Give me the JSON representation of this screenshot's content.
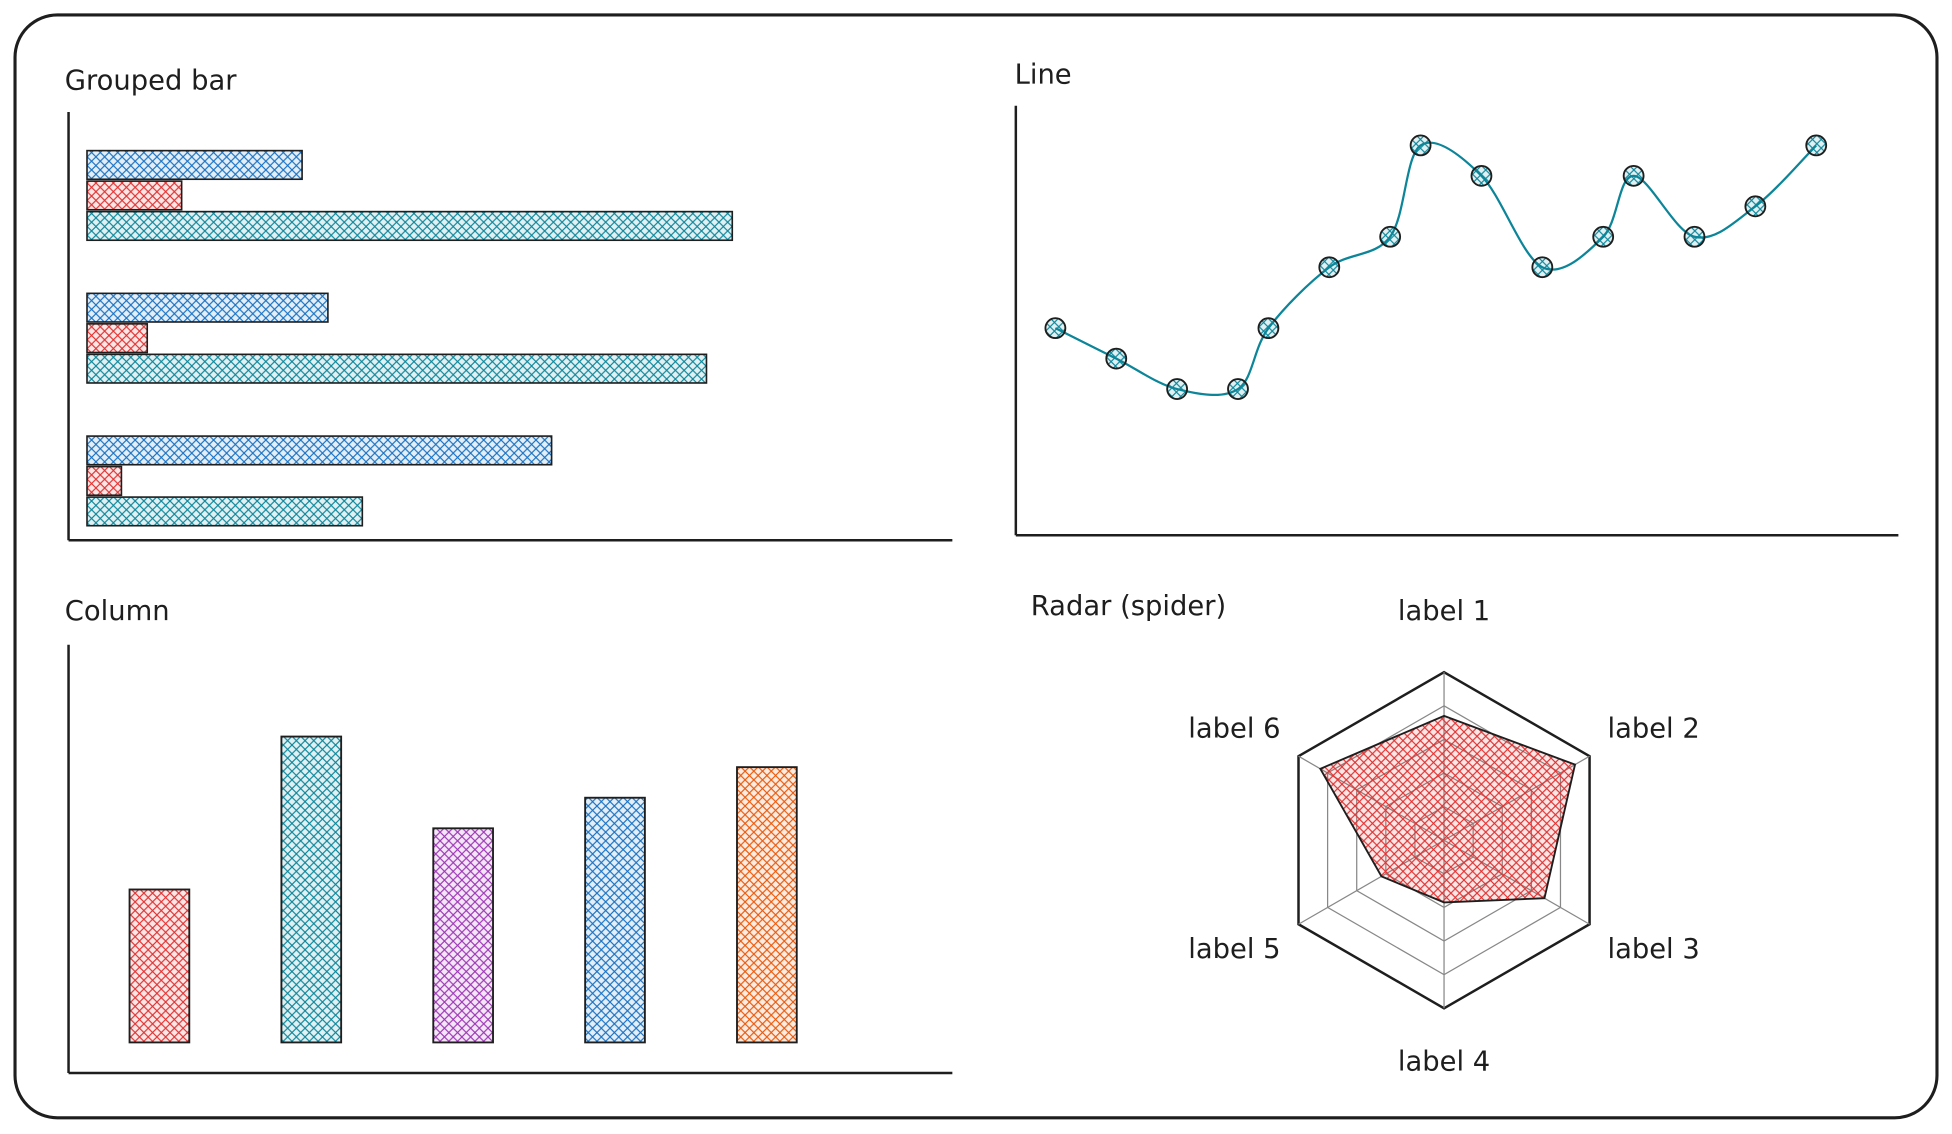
{
  "chart_data": [
    {
      "type": "bar",
      "orientation": "horizontal",
      "title": "Grouped bar",
      "categories": [
        null,
        null,
        null
      ],
      "series": [
        {
          "color": "#1971c2",
          "values": [
            25,
            28,
            54
          ]
        },
        {
          "color": "#e03131",
          "values": [
            11,
            7,
            4
          ]
        },
        {
          "color": "#0c8599",
          "values": [
            75,
            72,
            32
          ]
        }
      ],
      "xlim": [
        -2,
        100
      ]
    },
    {
      "type": "line",
      "title": "Line",
      "x": [
        0,
        2,
        4,
        6,
        7,
        9,
        11,
        12,
        14,
        16,
        18,
        19,
        21,
        23,
        25
      ],
      "series": [
        {
          "color": "#0c8599",
          "values": [
            2,
            1,
            0,
            0,
            2,
            4,
            5,
            8,
            7,
            4,
            5,
            7,
            5,
            6,
            8
          ]
        }
      ],
      "xlim": [
        -1.3,
        27.7
      ],
      "ylim": [
        -4.8,
        9.3
      ]
    },
    {
      "type": "column",
      "title": "Column",
      "categories": [
        null,
        null,
        null,
        null,
        null
      ],
      "values": [
        5,
        10,
        7,
        8,
        9
      ],
      "colors": [
        "#e03131",
        "#0c8599",
        "#9c36b5",
        "#1971c2",
        "#e8590c"
      ],
      "ylim": [
        -1,
        13
      ]
    },
    {
      "type": "radar",
      "title": "Radar (spider)",
      "categories": [
        "label 1",
        "label 2",
        "label 3",
        "label 4",
        "label 5",
        "label 6"
      ],
      "series": [
        {
          "color": "#e03131",
          "values": [
            7.4,
            9,
            6.9,
            3.7,
            4.3,
            8.5
          ]
        }
      ],
      "rlim": [
        0,
        10
      ]
    }
  ]
}
